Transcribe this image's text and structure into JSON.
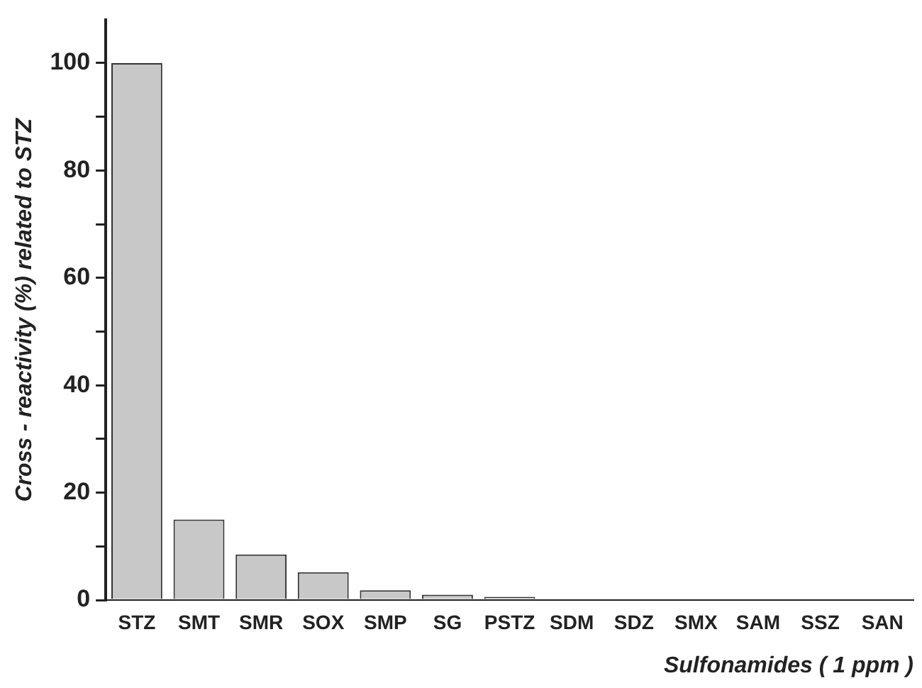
{
  "chart_data": {
    "type": "bar",
    "xlabel": "Sulfonamides ( 1 ppm )",
    "ylabel": "Cross - reactivity (%) related to STZ",
    "categories": [
      "STZ",
      "SMT",
      "SMR",
      "SOX",
      "SMP",
      "SG",
      "PSTZ",
      "SDM",
      "SDZ",
      "SMX",
      "SAM",
      "SSZ",
      "SAN"
    ],
    "values": [
      100,
      15,
      8.5,
      5.2,
      1.8,
      1,
      0.6,
      0,
      0,
      0,
      0,
      0,
      0
    ],
    "color": "#c8c8c8",
    "ylim": [
      0,
      108
    ],
    "yticks": [
      0,
      {
        "value": 10,
        "label": null
      },
      20,
      {
        "value": 30,
        "label": null
      },
      40,
      {
        "value": 50,
        "label": null
      },
      60,
      {
        "value": 70,
        "label": null
      },
      80,
      {
        "value": 90,
        "label": null
      },
      100
    ],
    "grid": false,
    "legend": false
  }
}
